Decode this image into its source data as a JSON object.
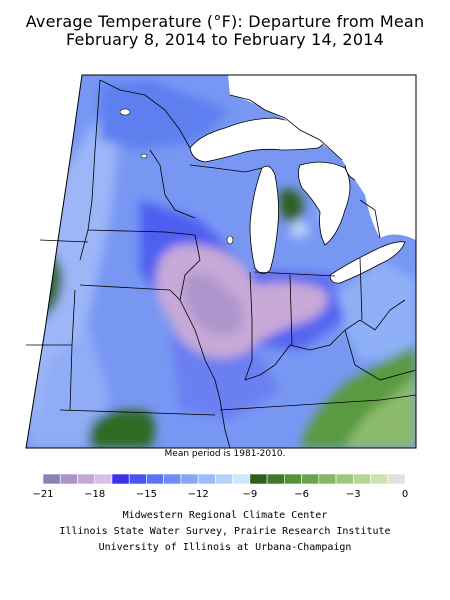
{
  "title_line1": "Average Temperature (°F): Departure from Mean",
  "title_line2": "February 8, 2014 to February 14, 2014",
  "note": "Mean period is 1981-2010.",
  "legend": {
    "bins": [
      {
        "from": -21,
        "to": -20,
        "color": "#8e7fb8"
      },
      {
        "from": -20,
        "to": -19,
        "color": "#a993c8"
      },
      {
        "from": -19,
        "to": -18,
        "color": "#c5a8d6"
      },
      {
        "from": -18,
        "to": -17,
        "color": "#d9c0e6"
      },
      {
        "from": -17,
        "to": -16,
        "color": "#3c30e8"
      },
      {
        "from": -16,
        "to": -15,
        "color": "#4a55f0"
      },
      {
        "from": -15,
        "to": -14,
        "color": "#5b73f2"
      },
      {
        "from": -14,
        "to": -13,
        "color": "#6e8df4"
      },
      {
        "from": -13,
        "to": -12,
        "color": "#86a6f7"
      },
      {
        "from": -12,
        "to": -11,
        "color": "#9dbcf9"
      },
      {
        "from": -11,
        "to": -10,
        "color": "#b6d2fb"
      },
      {
        "from": -10,
        "to": -9,
        "color": "#cfe6fd"
      },
      {
        "from": -9,
        "to": -8,
        "color": "#2e5d1e"
      },
      {
        "from": -8,
        "to": -7,
        "color": "#3f7a2b"
      },
      {
        "from": -7,
        "to": -6,
        "color": "#55923a"
      },
      {
        "from": -6,
        "to": -5,
        "color": "#6ca44e"
      },
      {
        "from": -5,
        "to": -4,
        "color": "#86b666"
      },
      {
        "from": -4,
        "to": -3,
        "color": "#9fc87f"
      },
      {
        "from": -3,
        "to": -2,
        "color": "#b6d698"
      },
      {
        "from": -2,
        "to": -1,
        "color": "#cce3b2"
      },
      {
        "from": -1,
        "to": 0,
        "color": "#e0e0e0"
      }
    ],
    "tick_labels": [
      "−21",
      "−18",
      "−15",
      "−12",
      "−9",
      "−6",
      "−3",
      "0"
    ],
    "tick_values": [
      -21,
      -18,
      -15,
      -12,
      -9,
      -6,
      -3,
      0
    ]
  },
  "credits": {
    "line1": "Midwestern Regional Climate Center",
    "line2": "Illinois State Water Survey, Prairie Research Institute",
    "line3": "University of Illinois at Urbana-Champaign"
  }
}
